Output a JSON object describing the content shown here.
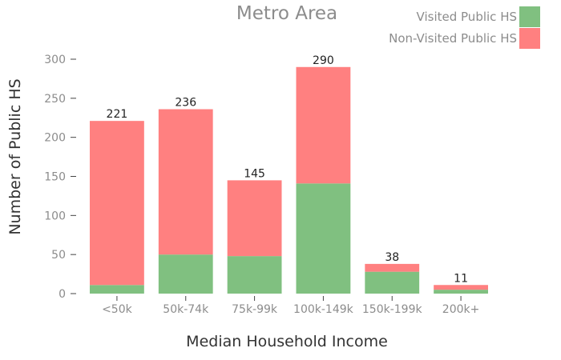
{
  "chart_data": {
    "type": "bar",
    "stacked": true,
    "title": "Metro Area",
    "xlabel": "Median Household Income",
    "ylabel": "Number of Public HS",
    "categories": [
      "<50k",
      "50k-74k",
      "75k-99k",
      "100k-149k",
      "150k-199k",
      "200k+"
    ],
    "series": [
      {
        "name": "Visited Public HS",
        "color": "#80c080",
        "values": [
          11,
          50,
          48,
          141,
          28,
          5
        ]
      },
      {
        "name": "Non-Visited Public HS",
        "color": "#ff8080",
        "values": [
          210,
          186,
          97,
          149,
          10,
          6
        ]
      }
    ],
    "totals": [
      "221",
      "236",
      "145",
      "290",
      "38",
      "11"
    ],
    "yticks": [
      "0",
      "50",
      "100",
      "150",
      "200",
      "250",
      "300"
    ],
    "ylim": [
      0,
      310
    ],
    "grid": false,
    "legend_position": "top-right"
  }
}
